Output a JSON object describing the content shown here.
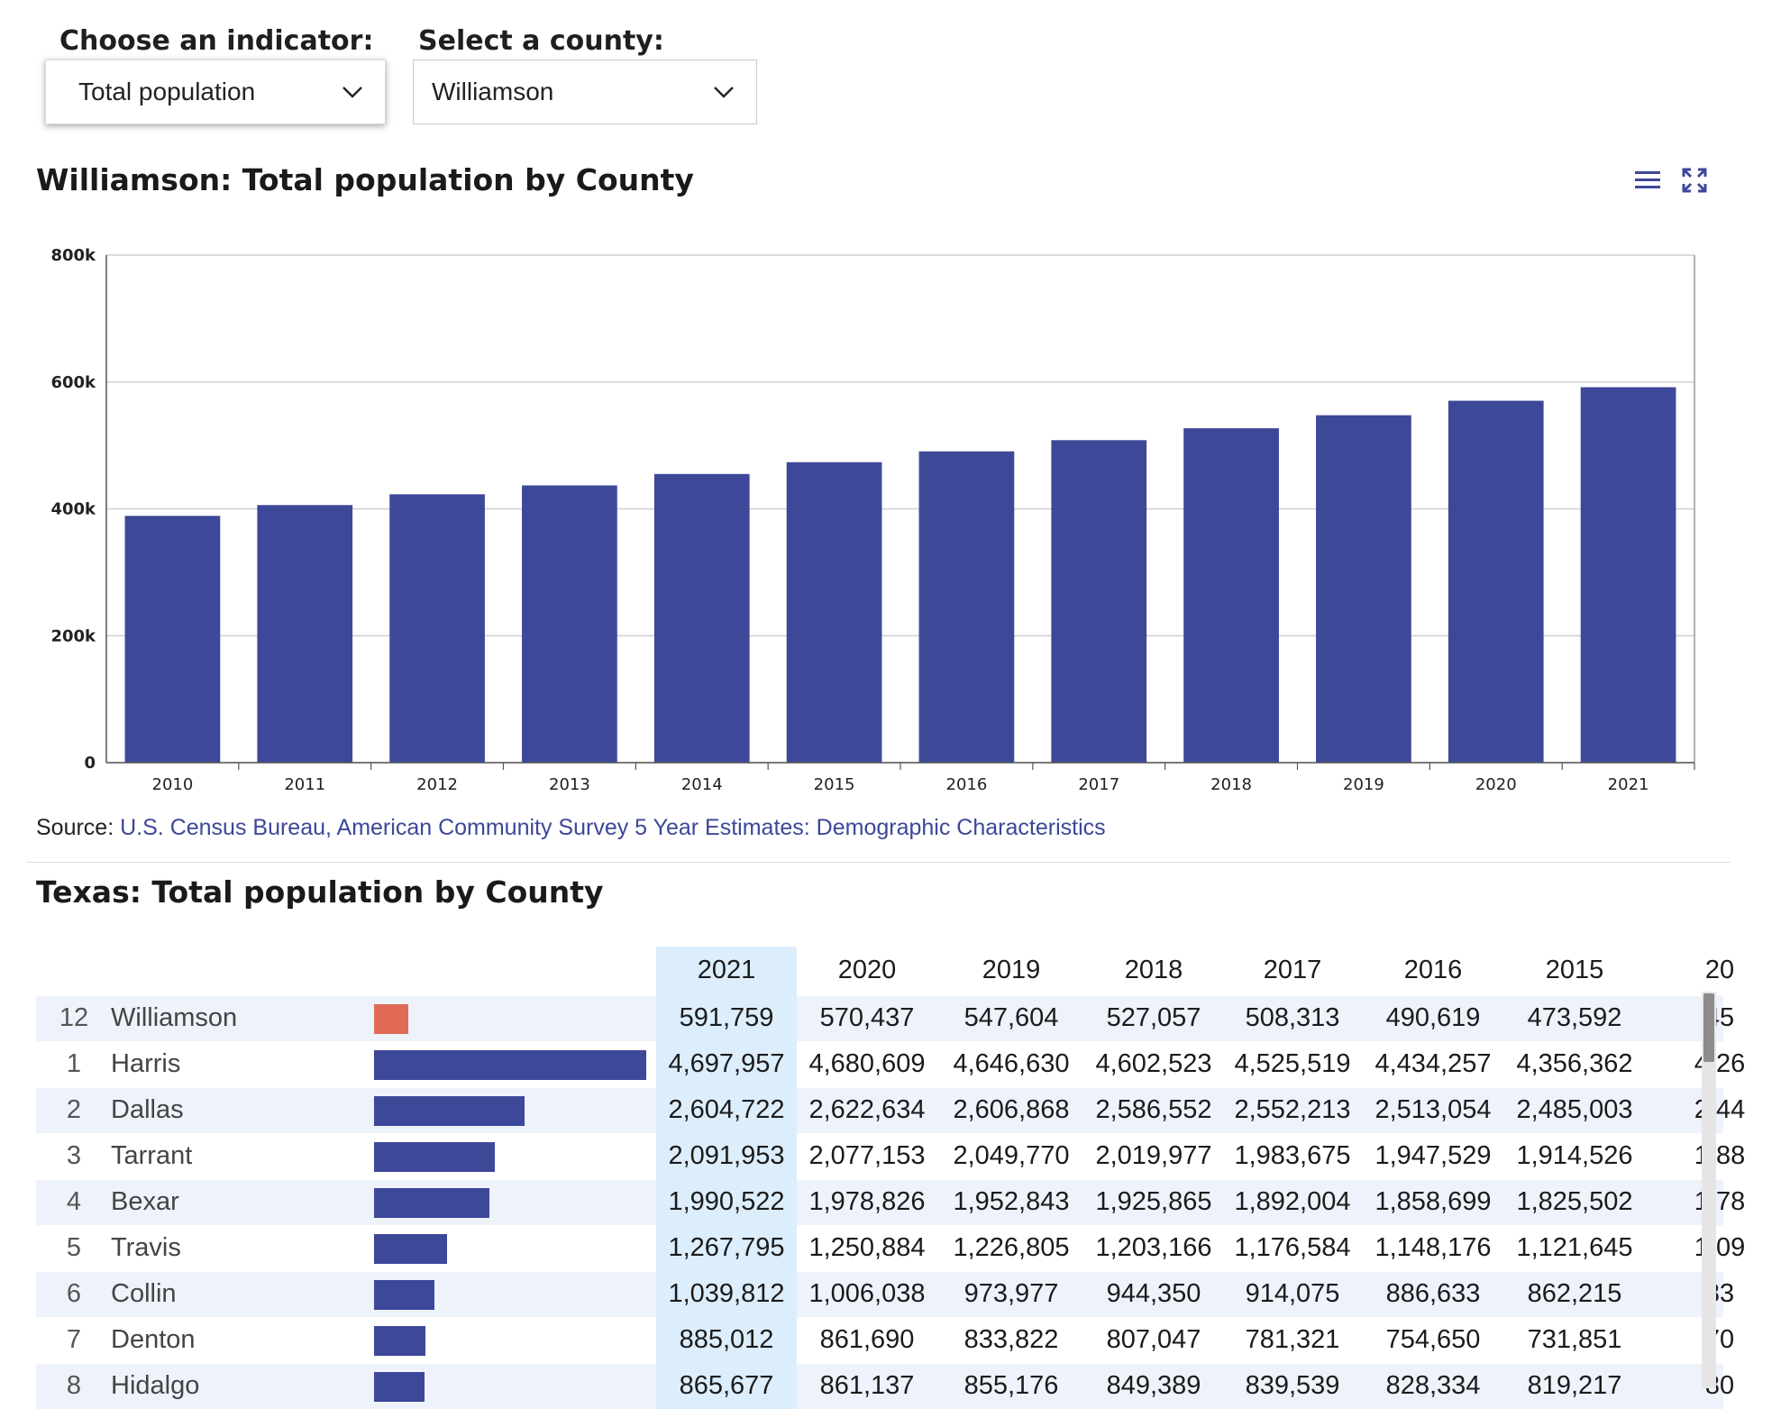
{
  "controls": {
    "indicator_label": "Choose an indicator:",
    "indicator_value": "Total population",
    "county_label": "Select a county:",
    "county_value": "Williamson"
  },
  "chart": {
    "title": "Williamson: Total population by County",
    "menu_icon": "hamburger-menu-icon",
    "fullscreen_icon": "fullscreen-icon"
  },
  "chart_data": {
    "type": "bar",
    "title": "Williamson: Total population by County",
    "categories": [
      "2010",
      "2011",
      "2012",
      "2013",
      "2014",
      "2015",
      "2016",
      "2017",
      "2018",
      "2019",
      "2020",
      "2021"
    ],
    "values": [
      389000,
      406000,
      423000,
      437000,
      455000,
      473592,
      490619,
      508313,
      527057,
      547604,
      570437,
      591759
    ],
    "ylim": [
      0,
      800000
    ],
    "yticks": [
      "0",
      "200k",
      "400k",
      "600k",
      "800k"
    ],
    "yticks_values": [
      0,
      200000,
      400000,
      600000,
      800000
    ],
    "xlabel": "",
    "ylabel": "",
    "bar_color": "#3d4899",
    "grid": true
  },
  "source": {
    "label": "Source:",
    "link_text": "U.S. Census Bureau, American Community Survey 5 Year Estimates: Demographic Characteristics"
  },
  "table": {
    "title": "Texas: Total population by County",
    "columns": [
      "2021",
      "2020",
      "2019",
      "2018",
      "2017",
      "2016",
      "2015",
      "20"
    ],
    "highlight_color": "#e06a56",
    "bar_color": "#3d4899",
    "rows": [
      {
        "rank": "12",
        "name": "Williamson",
        "value": 591759,
        "highlight": true,
        "cells": [
          "591,759",
          "570,437",
          "547,604",
          "527,057",
          "508,313",
          "490,619",
          "473,592",
          "45"
        ]
      },
      {
        "rank": "1",
        "name": "Harris",
        "value": 4697957,
        "cells": [
          "4,697,957",
          "4,680,609",
          "4,646,630",
          "4,602,523",
          "4,525,519",
          "4,434,257",
          "4,356,362",
          "4,26"
        ]
      },
      {
        "rank": "2",
        "name": "Dallas",
        "value": 2604722,
        "cells": [
          "2,604,722",
          "2,622,634",
          "2,606,868",
          "2,586,552",
          "2,552,213",
          "2,513,054",
          "2,485,003",
          "2,44"
        ]
      },
      {
        "rank": "3",
        "name": "Tarrant",
        "value": 2091953,
        "cells": [
          "2,091,953",
          "2,077,153",
          "2,049,770",
          "2,019,977",
          "1,983,675",
          "1,947,529",
          "1,914,526",
          "1,88"
        ]
      },
      {
        "rank": "4",
        "name": "Bexar",
        "value": 1990522,
        "cells": [
          "1,990,522",
          "1,978,826",
          "1,952,843",
          "1,925,865",
          "1,892,004",
          "1,858,699",
          "1,825,502",
          "1,78"
        ]
      },
      {
        "rank": "5",
        "name": "Travis",
        "value": 1267795,
        "cells": [
          "1,267,795",
          "1,250,884",
          "1,226,805",
          "1,203,166",
          "1,176,584",
          "1,148,176",
          "1,121,645",
          "1,09"
        ]
      },
      {
        "rank": "6",
        "name": "Collin",
        "value": 1039812,
        "cells": [
          "1,039,812",
          "1,006,038",
          "973,977",
          "944,350",
          "914,075",
          "886,633",
          "862,215",
          "83"
        ]
      },
      {
        "rank": "7",
        "name": "Denton",
        "value": 885012,
        "cells": [
          "885,012",
          "861,690",
          "833,822",
          "807,047",
          "781,321",
          "754,650",
          "731,851",
          "70"
        ]
      },
      {
        "rank": "8",
        "name": "Hidalgo",
        "value": 865677,
        "cells": [
          "865,677",
          "861,137",
          "855,176",
          "849,389",
          "839,539",
          "828,334",
          "819,217",
          "80"
        ]
      }
    ]
  }
}
